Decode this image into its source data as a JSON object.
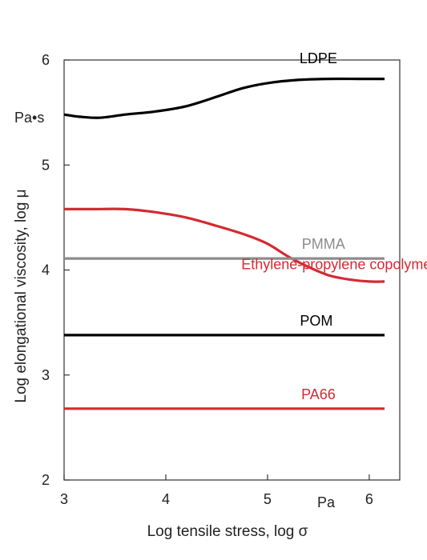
{
  "chart_data": {
    "type": "line",
    "title": "",
    "xlabel": "Log tensile stress, log σ",
    "ylabel": "Log elongational viscosity, log μ",
    "x_unit": "Pa",
    "y_unit": "Pa•s",
    "xlim": [
      3,
      6.3
    ],
    "ylim": [
      2,
      6
    ],
    "xticks": [
      "3",
      "4",
      "5",
      "6"
    ],
    "yticks": [
      "2",
      "3",
      "4",
      "5",
      "6"
    ],
    "grid": false,
    "series": [
      {
        "name": "LDPE",
        "color": "#000000",
        "x": [
          3.0,
          3.15,
          3.35,
          3.6,
          3.9,
          4.2,
          4.5,
          4.75,
          5.0,
          5.3,
          5.6,
          5.9,
          6.15
        ],
        "y": [
          5.48,
          5.46,
          5.45,
          5.48,
          5.51,
          5.56,
          5.65,
          5.73,
          5.78,
          5.81,
          5.82,
          5.82,
          5.82
        ]
      },
      {
        "name": "Ethylene-propylene copolymer",
        "color": "#d42a32",
        "x": [
          3.0,
          3.3,
          3.6,
          3.9,
          4.2,
          4.5,
          4.8,
          5.0,
          5.2,
          5.4,
          5.6,
          5.8,
          6.0,
          6.15
        ],
        "y": [
          4.58,
          4.58,
          4.58,
          4.55,
          4.5,
          4.42,
          4.33,
          4.25,
          4.13,
          4.03,
          3.95,
          3.91,
          3.89,
          3.89
        ]
      },
      {
        "name": "PMMA",
        "color": "#8c8c8c",
        "x": [
          3.0,
          6.15
        ],
        "y": [
          4.11,
          4.11
        ]
      },
      {
        "name": "POM",
        "color": "#000000",
        "x": [
          3.0,
          6.15
        ],
        "y": [
          3.38,
          3.38
        ]
      },
      {
        "name": "PA66",
        "color": "#d42a32",
        "x": [
          3.0,
          6.15
        ],
        "y": [
          2.68,
          2.68
        ]
      }
    ]
  }
}
